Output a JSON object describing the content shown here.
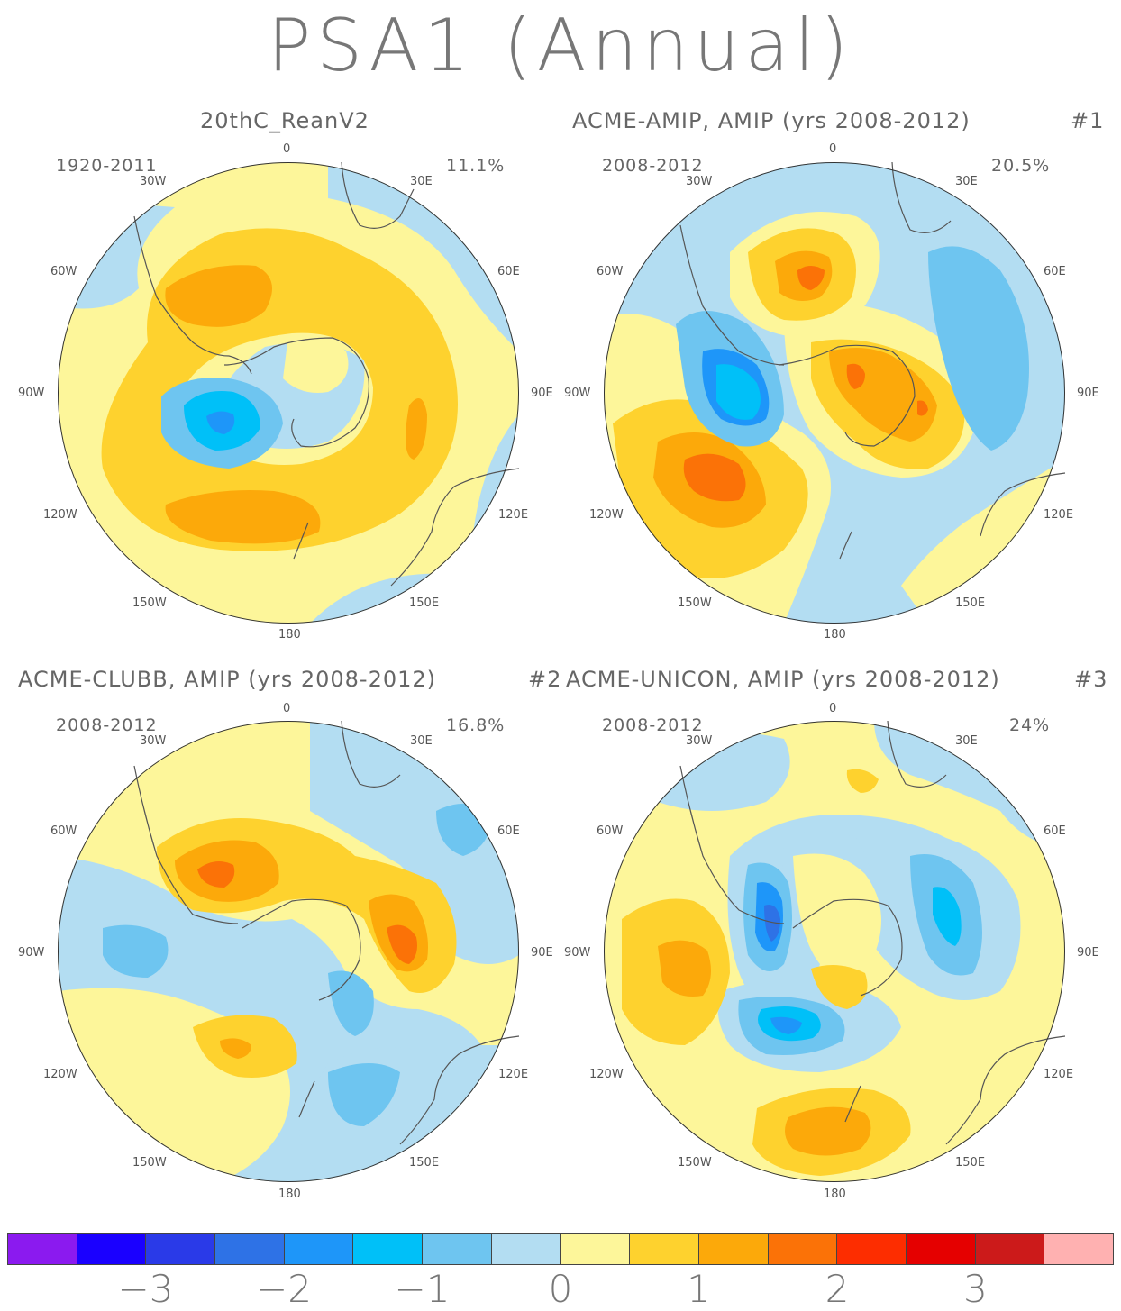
{
  "title": "PSA1 (Annual)",
  "panels": [
    {
      "id": "p1",
      "title": "20thC_ReanV2",
      "number": "",
      "period": "1920-2011",
      "percent": "11.1%"
    },
    {
      "id": "p2",
      "title": "ACME-AMIP, AMIP (yrs 2008-2012)",
      "number": "#1",
      "period": "2008-2012",
      "percent": "20.5%"
    },
    {
      "id": "p3",
      "title": "ACME-CLUBB, AMIP (yrs 2008-2012)",
      "number": "#2",
      "period": "2008-2012",
      "percent": "16.8%"
    },
    {
      "id": "p4",
      "title": "ACME-UNICON, AMIP (yrs 2008-2012)",
      "number": "#3",
      "period": "2008-2012",
      "percent": "24%"
    }
  ],
  "lon_labels": {
    "top": "0",
    "bottom": "180",
    "w30": "30W",
    "e30": "30E",
    "w60": "60W",
    "e60": "60E",
    "w90": "90W",
    "e90": "90E",
    "w120": "120W",
    "e120": "120E",
    "w150": "150W",
    "e150": "150E"
  },
  "colorbar": {
    "colors": [
      "#8b1aef",
      "#1a00ff",
      "#2a3ae8",
      "#2e72e6",
      "#1e96f9",
      "#00c0f8",
      "#6ec5f0",
      "#b3ddf2",
      "#fdf69a",
      "#fed22e",
      "#fca90a",
      "#fb7207",
      "#fd2d00",
      "#e50000",
      "#cc1a1a",
      "#ffb1b1"
    ],
    "labels": [
      {
        "text": "−3",
        "index": 2
      },
      {
        "text": "−2",
        "index": 4
      },
      {
        "text": "−1",
        "index": 6
      },
      {
        "text": "0",
        "index": 8
      },
      {
        "text": "1",
        "index": 10
      },
      {
        "text": "2",
        "index": 12
      },
      {
        "text": "3",
        "index": 14
      }
    ]
  }
}
